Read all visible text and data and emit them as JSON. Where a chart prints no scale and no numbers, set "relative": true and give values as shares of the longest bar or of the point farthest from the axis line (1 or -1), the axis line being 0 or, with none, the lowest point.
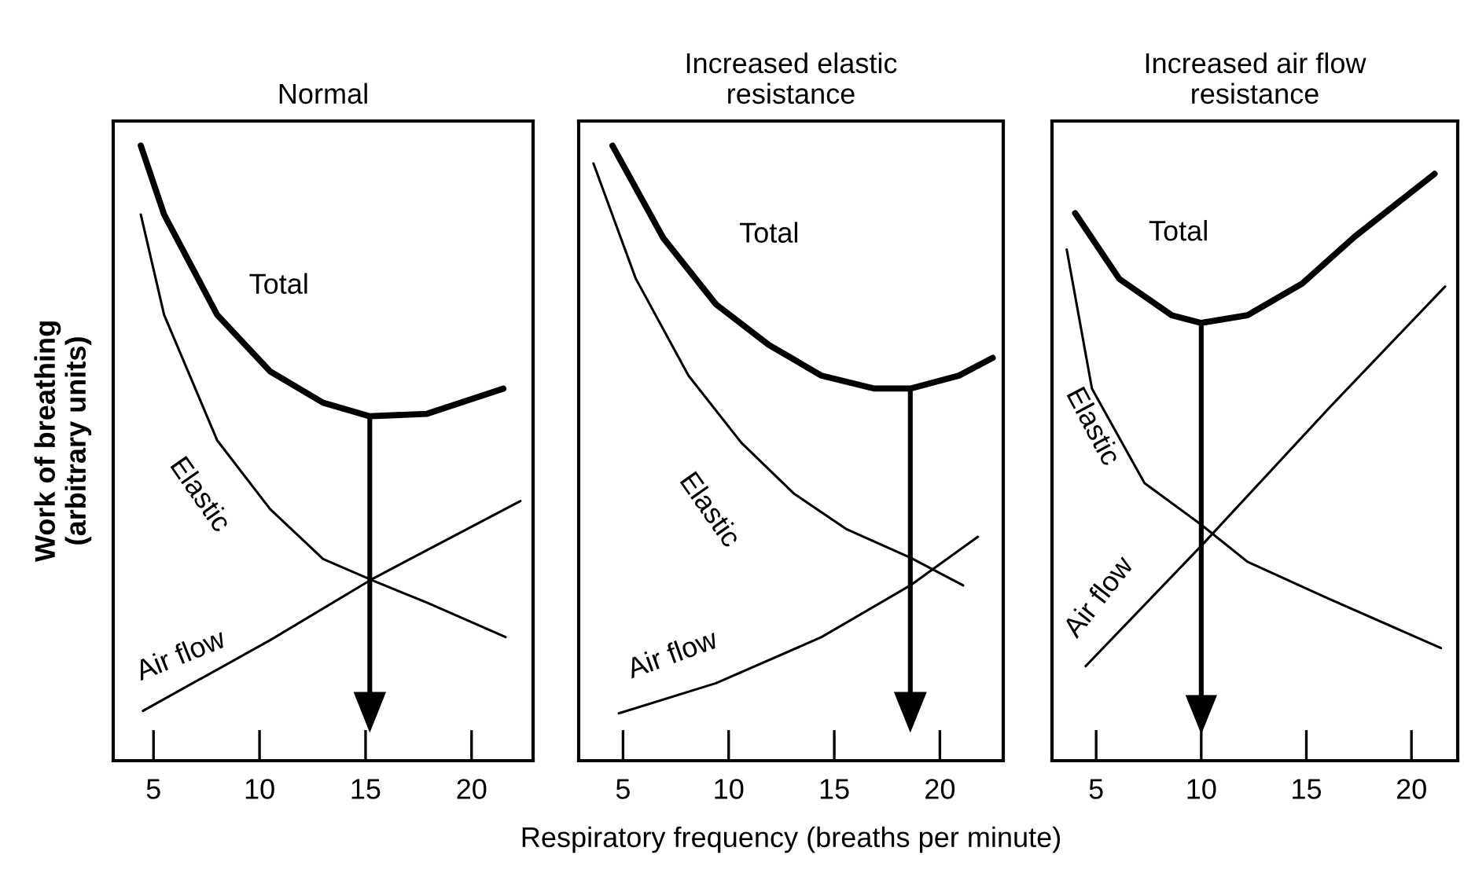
{
  "chart_data": [
    {
      "type": "line",
      "title": "Normal",
      "ylabel": "Work of breathing\n(arbitrary units)",
      "relative": true,
      "tick_labels": "x",
      "xlim": [
        3.1,
        22.9
      ],
      "xticks": [
        5,
        10,
        15,
        20
      ],
      "grid": false,
      "legend": false,
      "marker": "none",
      "line_style": "solid",
      "series": [
        {
          "name": "Total",
          "color": "#000000",
          "x": [
            4.4,
            5.5,
            8.0,
            10.5,
            13.0,
            15.2,
            17.9,
            21.5
          ],
          "values": [
            1,
            0.888,
            0.725,
            0.633,
            0.582,
            0.56,
            0.564,
            0.605
          ]
        },
        {
          "name": "Elastic",
          "color": "#000000",
          "x": [
            4.4,
            5.5,
            8.0,
            10.5,
            13.0,
            15.4,
            17.9,
            21.6
          ],
          "values": [
            0.888,
            0.725,
            0.521,
            0.409,
            0.328,
            0.292,
            0.257,
            0.201
          ]
        },
        {
          "name": "Air flow",
          "color": "#000000",
          "x": [
            4.5,
            10.5,
            15.4,
            22.3
          ],
          "values": [
            0.081,
            0.196,
            0.297,
            0.422
          ]
        }
      ],
      "ref_lines": [
        {
          "axis": "x",
          "value": 15.2,
          "color": "#000000"
        }
      ]
    },
    {
      "type": "line",
      "title": "Increased elastic\nresistance",
      "xlabel": "Respiratory frequency (breaths per minute)",
      "relative": true,
      "tick_labels": "x",
      "xlim": [
        2.9,
        23.0
      ],
      "xticks": [
        5,
        10,
        15,
        20
      ],
      "grid": false,
      "legend": false,
      "marker": "none",
      "line_style": "solid",
      "series": [
        {
          "name": "Total",
          "color": "#000000",
          "x": [
            4.5,
            6.9,
            9.4,
            11.9,
            14.4,
            16.9,
            18.6,
            20.9,
            22.5
          ],
          "values": [
            1,
            0.85,
            0.742,
            0.676,
            0.626,
            0.605,
            0.605,
            0.626,
            0.655
          ]
        },
        {
          "name": "Elastic",
          "color": "#000000",
          "x": [
            3.6,
            5.6,
            8.1,
            10.6,
            13.1,
            15.6,
            18.6,
            21.1
          ],
          "values": [
            0.971,
            0.784,
            0.626,
            0.517,
            0.434,
            0.376,
            0.33,
            0.285
          ]
        },
        {
          "name": "Air flow",
          "color": "#000000",
          "x": [
            4.8,
            9.4,
            14.4,
            18.6,
            21.8
          ],
          "values": [
            0.077,
            0.126,
            0.201,
            0.285,
            0.364
          ]
        }
      ],
      "ref_lines": [
        {
          "axis": "x",
          "value": 18.6,
          "color": "#000000"
        }
      ]
    },
    {
      "type": "line",
      "title": "Increased air flow\nresistance",
      "relative": true,
      "tick_labels": "x",
      "xlim": [
        2.9,
        22.2
      ],
      "xticks": [
        5,
        10,
        15,
        20
      ],
      "grid": false,
      "legend": false,
      "marker": "none",
      "line_style": "solid",
      "series": [
        {
          "name": "Total",
          "color": "#000000",
          "x": [
            4.0,
            6.1,
            8.6,
            10.0,
            12.2,
            14.8,
            17.3,
            21.1
          ],
          "values": [
            0.933,
            0.821,
            0.759,
            0.746,
            0.759,
            0.813,
            0.893,
            1
          ]
        },
        {
          "name": "Elastic",
          "color": "#000000",
          "x": [
            3.6,
            4.8,
            7.3,
            10.0,
            12.2,
            16.0,
            21.4
          ],
          "values": [
            0.871,
            0.634,
            0.473,
            0.402,
            0.339,
            0.277,
            0.192
          ]
        },
        {
          "name": "Air flow",
          "color": "#000000",
          "x": [
            4.5,
            10.0,
            16.0,
            21.6
          ],
          "values": [
            0.161,
            0.366,
            0.598,
            0.808
          ]
        }
      ],
      "ref_lines": [
        {
          "axis": "x",
          "value": 10.0,
          "color": "#000000"
        }
      ]
    }
  ]
}
